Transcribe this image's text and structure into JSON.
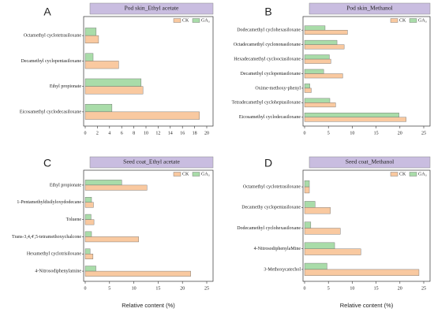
{
  "chart_data": [
    {
      "type": "bar",
      "orientation": "horizontal",
      "panel_label": "A",
      "title": "Pod skin_Ethyl acetate",
      "categories": [
        "Octamethyl cyclotetrasiloxane",
        "Decamethyl cyclopentasiloxane",
        "Ethyl propionate",
        "Eicosamethyl cyclodecasiloxane"
      ],
      "series": [
        {
          "name": "CK",
          "color": "#f9c9a0",
          "values": [
            2.2,
            5.5,
            9.5,
            18.8
          ]
        },
        {
          "name": "GA₃",
          "color": "#a9dca9",
          "values": [
            1.8,
            1.3,
            9.2,
            4.4
          ]
        }
      ],
      "xlim": [
        0,
        20
      ],
      "xticks": [
        0,
        2,
        4,
        6,
        8,
        10,
        12,
        14,
        16,
        18,
        20
      ],
      "legend": "upper right"
    },
    {
      "type": "bar",
      "orientation": "horizontal",
      "panel_label": "B",
      "title": "Pod skin_Methanol",
      "categories": [
        "Dodecamethyl cyclohexasiloxane",
        "Octadecamethyl cyclononasiloxane",
        "Hexadecamethyl cyclooctasiloxane",
        "Decamethyl cyclopentasiloxane",
        "Oxime-methoxy-phenyl",
        "Tetradecamethyl cycloheptasiloxane",
        "Eicosamethyl cyclodecasiloxane"
      ],
      "series": [
        {
          "name": "CK",
          "color": "#f9c9a0",
          "values": [
            9.0,
            8.3,
            5.5,
            8.0,
            1.4,
            6.5,
            21.3
          ]
        },
        {
          "name": "GA₃",
          "color": "#a9dca9",
          "values": [
            4.3,
            6.8,
            5.2,
            4.0,
            1.1,
            5.3,
            19.8
          ]
        }
      ],
      "xlim": [
        0,
        25
      ],
      "xticks": [
        0,
        5,
        10,
        15,
        20,
        25
      ],
      "legend": "upper right"
    },
    {
      "type": "bar",
      "orientation": "horizontal",
      "panel_label": "C",
      "title": "Seed coat_Ethyl acetate",
      "categories": [
        "Ethyl propionate",
        "1-Pentamethyldisilyloxydodecane",
        "Toluene",
        "Trans-3,4,4',5-tetramethoxychalcone",
        "Hexamethyl cyclotrisiloxane",
        "4-Nitrosodiphenylamine"
      ],
      "series": [
        {
          "name": "CK",
          "color": "#f9c9a0",
          "values": [
            12.7,
            1.7,
            1.8,
            11.0,
            1.6,
            21.7
          ]
        },
        {
          "name": "GA₃",
          "color": "#a9dca9",
          "values": [
            7.5,
            1.3,
            1.2,
            1.3,
            1.0,
            2.2
          ]
        }
      ],
      "xlim": [
        0,
        25
      ],
      "xticks": [
        0,
        5,
        10,
        15,
        20,
        25
      ],
      "x_label": "Relative content (%)",
      "legend": "upper right"
    },
    {
      "type": "bar",
      "orientation": "horizontal",
      "panel_label": "D",
      "title": "Seed coat_Methanol",
      "categories": [
        "Octamethyl cyclotetrasiloxane",
        "Decamethy cyclopentasiloxane",
        "Dodecamethyl cyclohexasiloxane",
        "4-NitrosodiphenylaMine",
        "3-Methoxycatechol"
      ],
      "series": [
        {
          "name": "CK",
          "color": "#f9c9a0",
          "values": [
            1.0,
            5.4,
            7.5,
            11.8,
            24.0
          ]
        },
        {
          "name": "GA₃",
          "color": "#a9dca9",
          "values": [
            1.0,
            2.2,
            1.3,
            6.3,
            4.7
          ]
        }
      ],
      "xlim": [
        0,
        25
      ],
      "xticks": [
        0,
        5,
        10,
        15,
        20,
        25
      ],
      "x_label": "Relative content (%)",
      "legend": "upper right"
    }
  ]
}
